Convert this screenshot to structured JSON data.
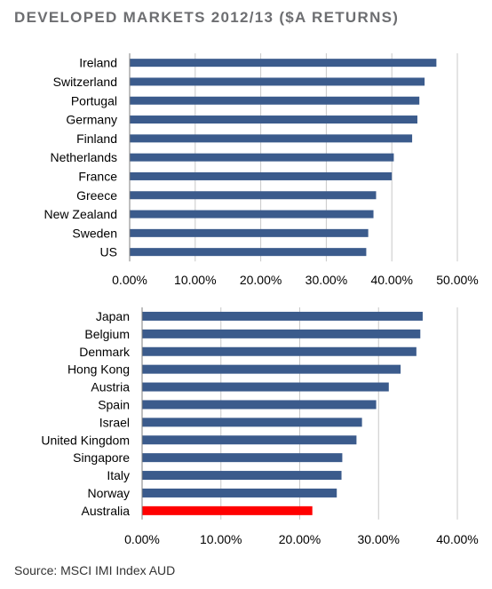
{
  "title": "DEVELOPED MARKETS 2012/13 ($A RETURNS)",
  "source": "Source: MSCI IMI Index AUD",
  "colors": {
    "bar": "#3b5b8c",
    "highlight": "#ff0000",
    "grid": "#c8c8c8",
    "axis": "#7f7f7f"
  },
  "chart_data": [
    {
      "type": "bar",
      "orientation": "horizontal",
      "categories": [
        "Ireland",
        "Switzerland",
        "Portugal",
        "Germany",
        "Finland",
        "Netherlands",
        "France",
        "Greece",
        "New Zealand",
        "Sweden",
        "US"
      ],
      "values": [
        46.8,
        45.0,
        44.2,
        43.9,
        43.1,
        40.3,
        40.0,
        37.6,
        37.2,
        36.4,
        36.1
      ],
      "xticks": [
        "0.00%",
        "10.00%",
        "20.00%",
        "30.00%",
        "40.00%",
        "50.00%"
      ],
      "xlim": [
        0,
        50
      ],
      "grid": true
    },
    {
      "type": "bar",
      "orientation": "horizontal",
      "categories": [
        "Japan",
        "Belgium",
        "Denmark",
        "Hong Kong",
        "Austria",
        "Spain",
        "Israel",
        "United Kingdom",
        "Singapore",
        "Italy",
        "Norway",
        "Australia"
      ],
      "values": [
        35.6,
        35.3,
        34.8,
        32.8,
        31.3,
        29.7,
        27.9,
        27.2,
        25.4,
        25.3,
        24.7,
        21.6
      ],
      "highlight": "Australia",
      "xticks": [
        "0.00%",
        "10.00%",
        "20.00%",
        "30.00%",
        "40.00%"
      ],
      "xlim": [
        0,
        40
      ],
      "grid": true
    }
  ]
}
